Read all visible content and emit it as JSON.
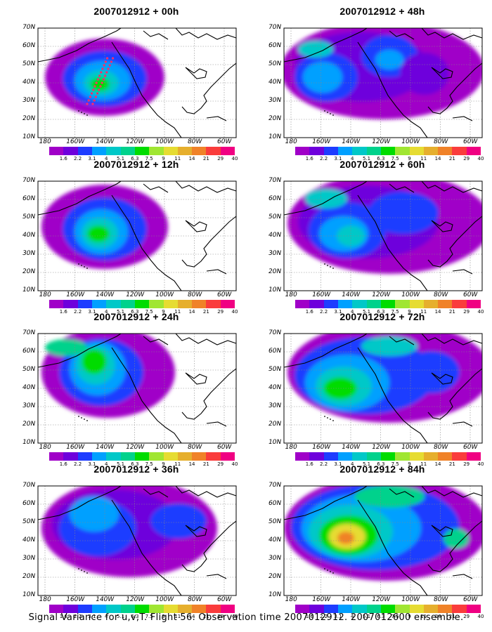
{
  "panels": [
    {
      "id": "p00",
      "title": "2007012912 + 00h",
      "forecast_hour": 0
    },
    {
      "id": "p48",
      "title": "2007012912 + 48h",
      "forecast_hour": 48
    },
    {
      "id": "p12",
      "title": "2007012912 + 12h",
      "forecast_hour": 12
    },
    {
      "id": "p60",
      "title": "2007012912 + 60h",
      "forecast_hour": 60
    },
    {
      "id": "p24",
      "title": "2007012912 + 24h",
      "forecast_hour": 24
    },
    {
      "id": "p72",
      "title": "2007012912 + 72h",
      "forecast_hour": 72
    },
    {
      "id": "p36",
      "title": "2007012912 + 36h",
      "forecast_hour": 36
    },
    {
      "id": "p84",
      "title": "2007012912 + 84h",
      "forecast_hour": 84
    }
  ],
  "lat_labels": [
    "70N",
    "60N",
    "50N",
    "40N",
    "30N",
    "20N",
    "10N"
  ],
  "lon_labels": [
    "180",
    "160W",
    "140W",
    "120W",
    "100W",
    "80W",
    "60W"
  ],
  "colorbar": {
    "labels": [
      "1.6",
      "2.2",
      "3.1",
      "4",
      "5.1",
      "6.3",
      "7.5",
      "9",
      "11",
      "14",
      "21",
      "29",
      "40"
    ],
    "colors": [
      "#a000c8",
      "#6e00dc",
      "#1e3cff",
      "#00a0ff",
      "#00c8c8",
      "#00d28c",
      "#00dc00",
      "#a0e632",
      "#e6dc32",
      "#e6af2d",
      "#f08228",
      "#fa3c3c",
      "#f00082"
    ]
  },
  "footer": "Signal Variance for u,v,T. Flight 56. Observation time 2007012912. 2007012600 ensemble."
}
